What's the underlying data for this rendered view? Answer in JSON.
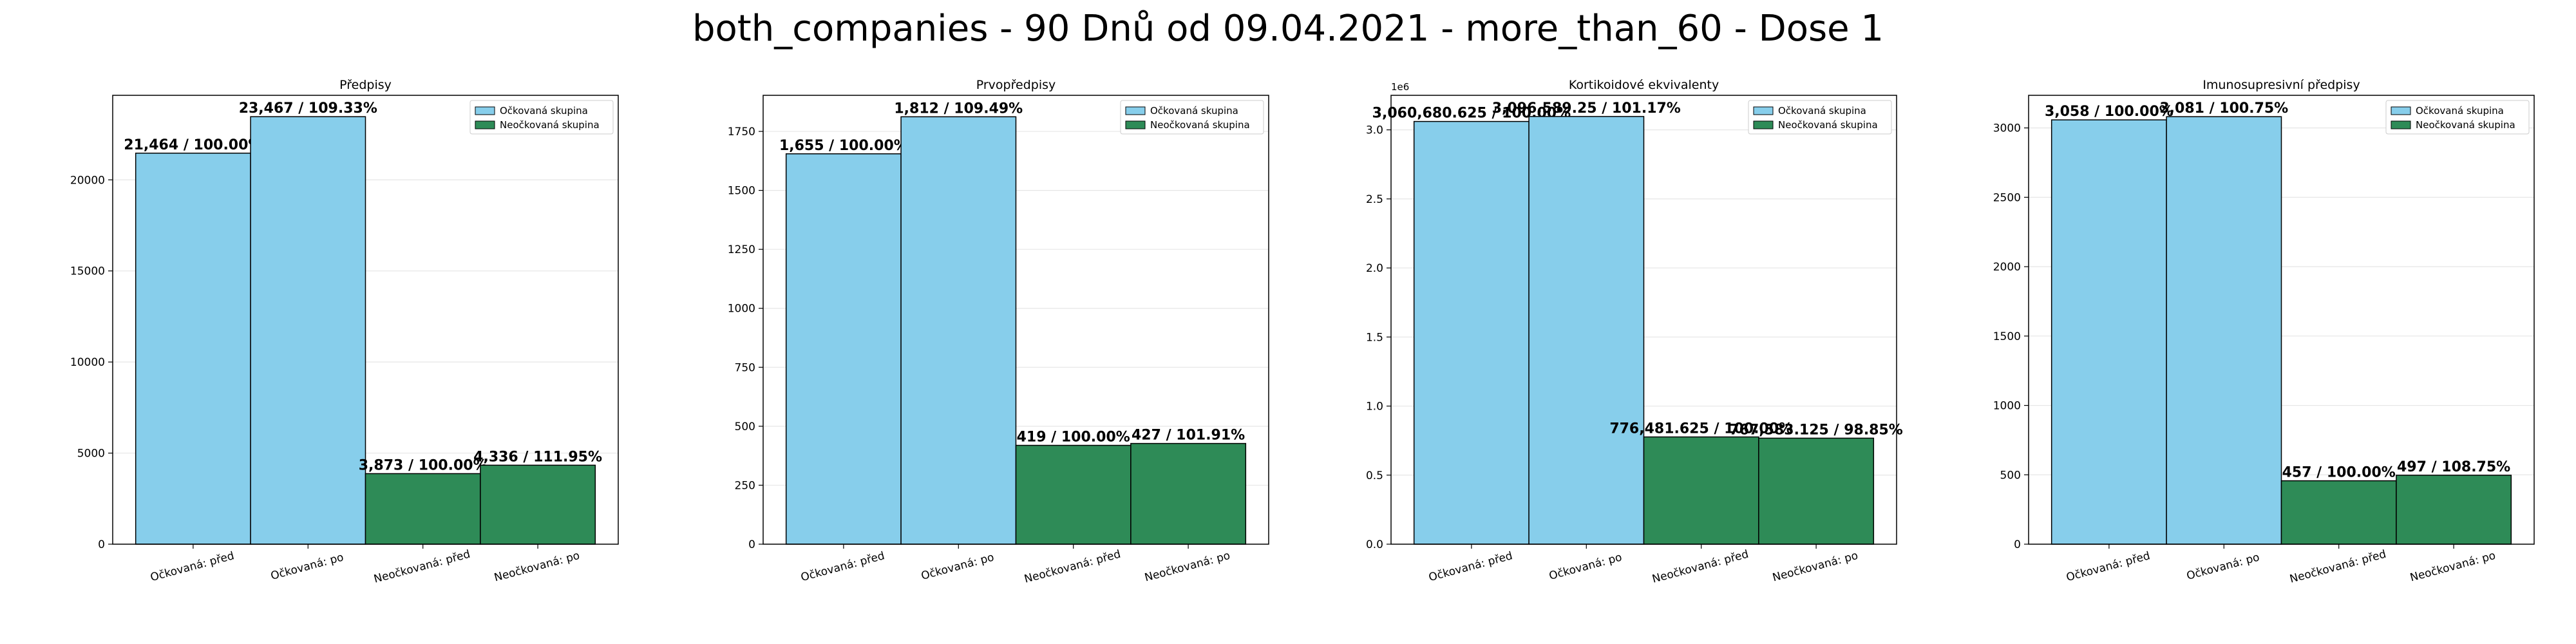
{
  "figure_title": "both_companies - 90 Dnů od 09.04.2021 - more_than_60 - Dose 1",
  "colors": {
    "vaccinated": "#87ceeb",
    "unvaccinated": "#2e8b57",
    "edge": "#000000",
    "grid": "#e6e6e6"
  },
  "chart_data": [
    {
      "type": "bar",
      "title": "Předpisy",
      "categories": [
        "Očkovaná: před",
        "Očkovaná: po",
        "Neočkovaná: před",
        "Neočkovaná: po"
      ],
      "values": [
        21464,
        23467,
        3873,
        4336
      ],
      "series_group": [
        "vaccinated",
        "vaccinated",
        "unvaccinated",
        "unvaccinated"
      ],
      "data_labels": [
        "21,464 / 100.00%",
        "23,467 / 109.33%",
        "3,873 / 100.00%",
        "4,336 / 111.95%"
      ],
      "yticks": [
        0,
        5000,
        10000,
        15000,
        20000
      ],
      "ytick_labels": [
        "0",
        "5000",
        "10000",
        "15000",
        "20000"
      ],
      "offset_label": "",
      "ylim": [
        0,
        24640
      ],
      "legend": [
        "Očkovaná skupina",
        "Neočkovaná skupina"
      ],
      "legend_position": "top-right",
      "grid": "y"
    },
    {
      "type": "bar",
      "title": "Prvopředpisy",
      "categories": [
        "Očkovaná: před",
        "Očkovaná: po",
        "Neočkovaná: před",
        "Neočkovaná: po"
      ],
      "values": [
        1655,
        1812,
        419,
        427
      ],
      "series_group": [
        "vaccinated",
        "vaccinated",
        "unvaccinated",
        "unvaccinated"
      ],
      "data_labels": [
        "1,655 / 100.00%",
        "1,812 / 109.49%",
        "419 / 100.00%",
        "427 / 101.91%"
      ],
      "yticks": [
        0,
        250,
        500,
        750,
        1000,
        1250,
        1500,
        1750
      ],
      "ytick_labels": [
        "0",
        "250",
        "500",
        "750",
        "1000",
        "1250",
        "1500",
        "1750"
      ],
      "offset_label": "",
      "ylim": [
        0,
        1903
      ],
      "legend": [
        "Očkovaná skupina",
        "Neočkovaná skupina"
      ],
      "legend_position": "top-right",
      "grid": "y"
    },
    {
      "type": "bar",
      "title": "Kortikoidové ekvivalenty",
      "categories": [
        "Očkovaná: před",
        "Očkovaná: po",
        "Neočkovaná: před",
        "Neočkovaná: po"
      ],
      "values": [
        3060680.625,
        3096589.25,
        776481.625,
        767583.125
      ],
      "series_group": [
        "vaccinated",
        "vaccinated",
        "unvaccinated",
        "unvaccinated"
      ],
      "data_labels": [
        "3,060,680.625 / 100.00%",
        "3,096,589.25 / 101.17%",
        "776,481.625 / 100.00%",
        "767,583.125 / 98.85%"
      ],
      "yticks": [
        0,
        500000,
        1000000,
        1500000,
        2000000,
        2500000,
        3000000
      ],
      "ytick_labels": [
        "0.0",
        "0.5",
        "1.0",
        "1.5",
        "2.0",
        "2.5",
        "3.0"
      ],
      "offset_label": "1e6",
      "ylim": [
        0,
        3250000
      ],
      "legend": [
        "Očkovaná skupina",
        "Neočkovaná skupina"
      ],
      "legend_position": "top-right",
      "grid": "y"
    },
    {
      "type": "bar",
      "title": "Imunosupresivní předpisy",
      "categories": [
        "Očkovaná: před",
        "Očkovaná: po",
        "Neočkovaná: před",
        "Neočkovaná: po"
      ],
      "values": [
        3058,
        3081,
        457,
        497
      ],
      "series_group": [
        "vaccinated",
        "vaccinated",
        "unvaccinated",
        "unvaccinated"
      ],
      "data_labels": [
        "3,058 / 100.00%",
        "3,081 / 100.75%",
        "457 / 100.00%",
        "497 / 108.75%"
      ],
      "yticks": [
        0,
        500,
        1000,
        1500,
        2000,
        2500,
        3000
      ],
      "ytick_labels": [
        "0",
        "500",
        "1000",
        "1500",
        "2000",
        "2500",
        "3000"
      ],
      "offset_label": "",
      "ylim": [
        0,
        3235
      ],
      "legend": [
        "Očkovaná skupina",
        "Neočkovaná skupina"
      ],
      "legend_position": "top-right",
      "grid": "y"
    }
  ]
}
